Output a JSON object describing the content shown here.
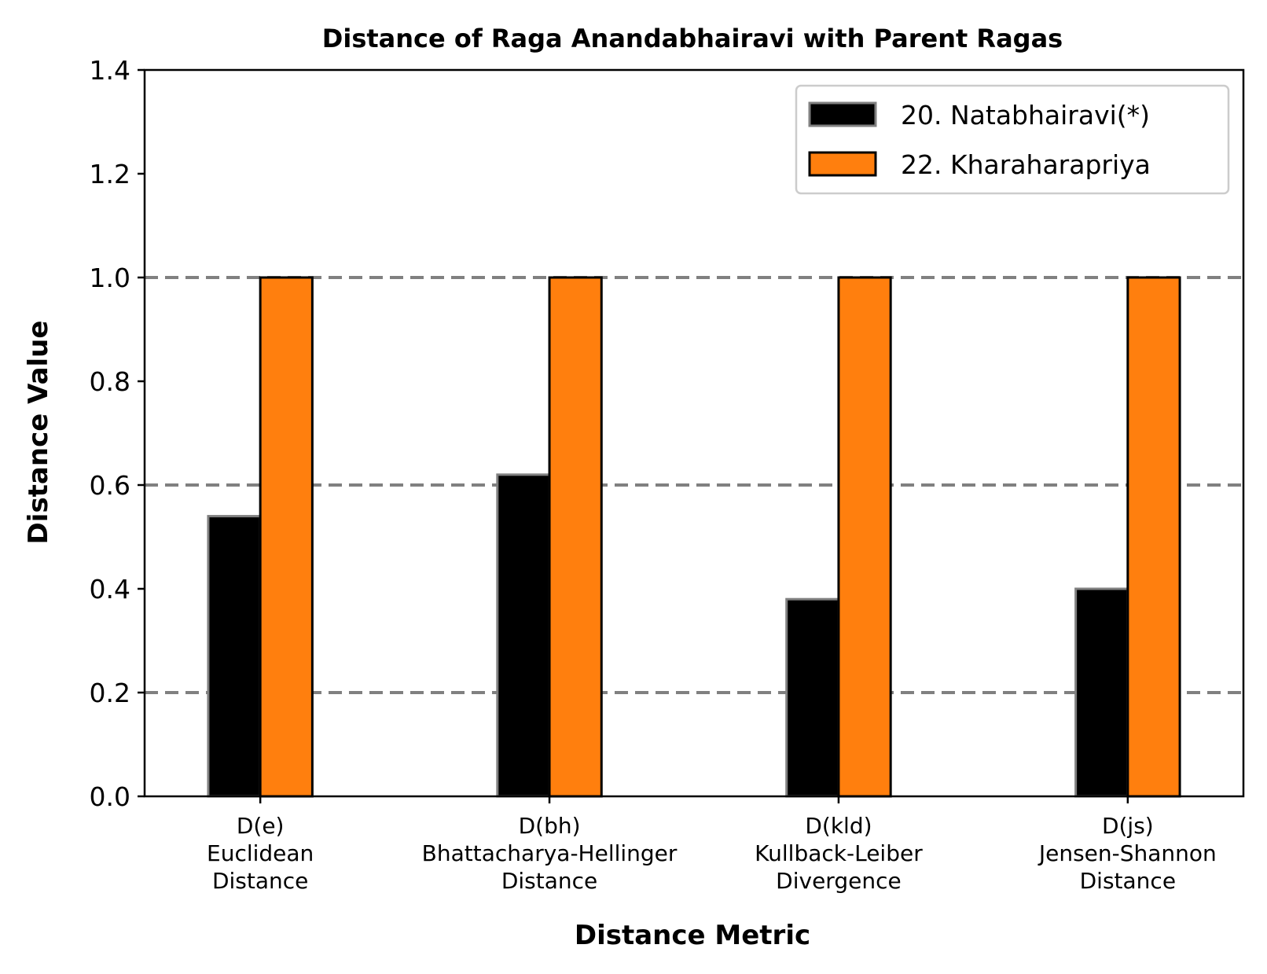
{
  "chart_data": {
    "type": "bar",
    "title": "Distance of Raga Anandabhairavi with Parent Ragas",
    "xlabel": "Distance Metric",
    "ylabel": "Distance Value",
    "categories": [
      [
        "D(e)",
        "Euclidean",
        "Distance"
      ],
      [
        "D(bh)",
        "Bhattacharya-Hellinger",
        "Distance"
      ],
      [
        "D(kld)",
        "Kullback-Leiber",
        "Divergence"
      ],
      [
        "D(js)",
        "Jensen-Shannon",
        "Distance"
      ]
    ],
    "series": [
      {
        "name": "20. Natabhairavi(*)",
        "values": [
          0.54,
          0.62,
          0.38,
          0.4
        ],
        "color": "#000000",
        "edge_color": "#808080"
      },
      {
        "name": "22. Kharaharapriya",
        "values": [
          1.0,
          1.0,
          1.0,
          1.0
        ],
        "color": "#ff7f0e",
        "edge_color": "#000000"
      }
    ],
    "ylim": [
      0,
      1.4
    ],
    "yticks": [
      "0.0",
      "0.2",
      "0.4",
      "0.6",
      "0.8",
      "1.0",
      "1.2",
      "1.4"
    ],
    "reference_lines": [
      0.2,
      0.6,
      1.0
    ],
    "reference_line_color": "#808080",
    "reference_line_style": "dashed",
    "legend_position": "top-right",
    "grid": false
  }
}
